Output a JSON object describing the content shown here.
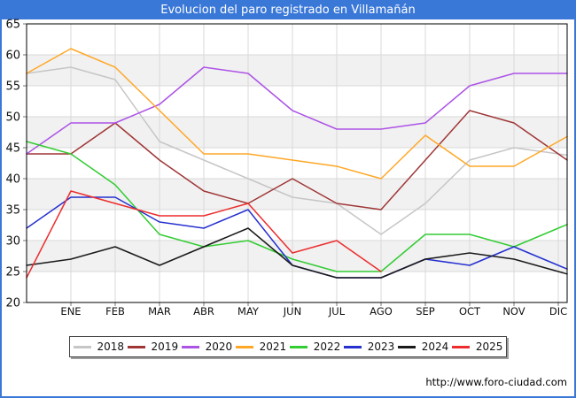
{
  "window": {
    "title": "Evolucion del paro registrado en Villamañán"
  },
  "footer": {
    "url": "http://www.foro-ciudad.com"
  },
  "colors": {
    "titlebar": "#3a78d8",
    "frame_border": "#3a78d8",
    "band": "#f1f1f1",
    "gridline": "#d9d9d9",
    "axis_border": "#000000",
    "tick": "#777777"
  },
  "chart_data": {
    "type": "line",
    "title": "Evolucion del paro registrado en Villamañán",
    "x_labels": [
      "ENE",
      "FEB",
      "MAR",
      "ABR",
      "MAY",
      "JUN",
      "JUL",
      "AGO",
      "SEP",
      "OCT",
      "NOV",
      "DIC"
    ],
    "first_value_at_y_axis": true,
    "ylim": [
      20,
      65
    ],
    "y_tick_step": 5,
    "grid": true,
    "legend_position": "bottom",
    "series": [
      {
        "name": "2018",
        "color": "#c6c6c6",
        "values": [
          57,
          58,
          56,
          46,
          43,
          40,
          37,
          36,
          31,
          36,
          43,
          45,
          44
        ]
      },
      {
        "name": "2019",
        "color": "#a03636",
        "values": [
          44,
          44,
          49,
          43,
          38,
          36,
          40,
          36,
          35,
          43,
          51,
          49,
          44
        ]
      },
      {
        "name": "2020",
        "color": "#ad53e6",
        "values": [
          44,
          49,
          49,
          52,
          58,
          57,
          51,
          48,
          48,
          49,
          55,
          57,
          57
        ]
      },
      {
        "name": "2021",
        "color": "#ffa726",
        "values": [
          57,
          61,
          58,
          51,
          44,
          44,
          43,
          42,
          40,
          47,
          42,
          42,
          46
        ]
      },
      {
        "name": "2022",
        "color": "#33cc33",
        "values": [
          46,
          44,
          39,
          31,
          29,
          30,
          27,
          25,
          25,
          31,
          31,
          29,
          32
        ]
      },
      {
        "name": "2023",
        "color": "#2530cf",
        "values": [
          32,
          37,
          37,
          33,
          32,
          35,
          26,
          24,
          24,
          27,
          26,
          29,
          26
        ]
      },
      {
        "name": "2024",
        "color": "#1a1a1a",
        "values": [
          26,
          27,
          29,
          26,
          29,
          32,
          26,
          24,
          24,
          27,
          28,
          27,
          25
        ]
      },
      {
        "name": "2025",
        "color": "#ed2d2d",
        "values": [
          24,
          38,
          36,
          34,
          34,
          36,
          28,
          30,
          25
        ]
      }
    ]
  }
}
